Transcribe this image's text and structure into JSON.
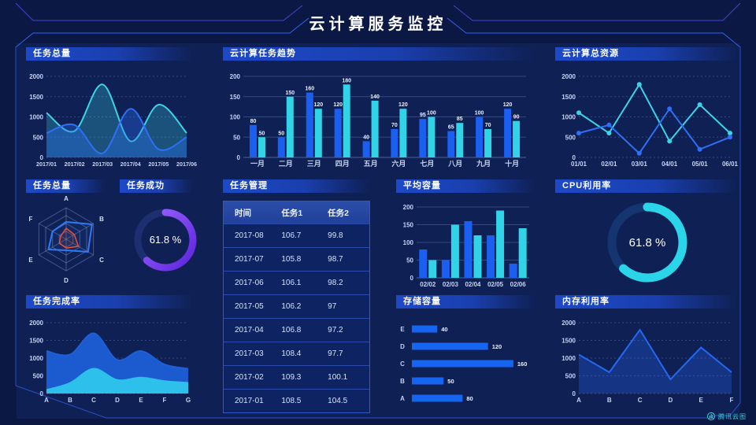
{
  "header": {
    "title": "云计算服务监控"
  },
  "watermark": {
    "label": "腾讯云图"
  },
  "panels": {
    "task_total_trend": {
      "title": "任务总量"
    },
    "cloud_task_trend": {
      "title": "云计算任务趋势"
    },
    "cloud_resources": {
      "title": "云计算总资源"
    },
    "task_total_radar": {
      "title": "任务总量"
    },
    "task_success": {
      "title": "任务成功"
    },
    "task_management": {
      "title": "任务管理"
    },
    "avg_capacity": {
      "title": "平均容量"
    },
    "cpu_usage": {
      "title": "CPU利用率"
    },
    "task_completion": {
      "title": "任务完成率"
    },
    "storage_capacity": {
      "title": "存储容量"
    },
    "memory_usage": {
      "title": "内存利用率"
    }
  },
  "gauges": {
    "task_success": {
      "value": 61.8,
      "label": "61.8 %",
      "color_start": "#9b63ff",
      "color_end": "#5b24dc",
      "track": "#1d2f6e"
    },
    "cpu_usage": {
      "value": 61.8,
      "label": "61.8 %",
      "color": "#2bd5e9",
      "track": "#14356f"
    }
  },
  "table": {
    "columns": [
      "时间",
      "任务1",
      "任务2"
    ],
    "rows": [
      [
        "2017-08",
        "106.7",
        "99.8"
      ],
      [
        "2017-07",
        "105.8",
        "98.7"
      ],
      [
        "2017-06",
        "106.1",
        "98.2"
      ],
      [
        "2017-05",
        "106.2",
        "97"
      ],
      [
        "2017-04",
        "106.8",
        "97.2"
      ],
      [
        "2017-03",
        "108.4",
        "97.7"
      ],
      [
        "2017-02",
        "109.3",
        "100.1"
      ],
      [
        "2017-01",
        "108.5",
        "104.5"
      ]
    ]
  },
  "chart_data": {
    "task_total_trend": {
      "type": "smooth-area",
      "categories": [
        "2017/01",
        "2017/02",
        "2017/03",
        "2017/04",
        "2017/05",
        "2017/06"
      ],
      "series": [
        {
          "name": "cyan",
          "color": "#3bd4e4",
          "fill_opacity": 0.28,
          "values": [
            1100,
            650,
            1800,
            400,
            1300,
            600
          ]
        },
        {
          "name": "blue",
          "color": "#2f6ff5",
          "fill_opacity": 0.35,
          "values": [
            600,
            800,
            100,
            1200,
            200,
            500
          ]
        }
      ],
      "yticks": [
        0,
        500,
        1000,
        1500,
        2000
      ],
      "ymax": 2000
    },
    "cloud_task_trend": {
      "type": "grouped-bar",
      "categories": [
        "一月",
        "二月",
        "三月",
        "四月",
        "五月",
        "六月",
        "七月",
        "八月",
        "九月",
        "十月"
      ],
      "series": [
        {
          "name": "blue",
          "color": "#1a5ff0",
          "values": [
            80,
            50,
            160,
            120,
            40,
            70,
            95,
            65,
            100,
            120
          ]
        },
        {
          "name": "cyan",
          "color": "#30d4e6",
          "values": [
            50,
            150,
            120,
            180,
            140,
            120,
            100,
            85,
            70,
            90
          ]
        }
      ],
      "yticks": [
        0,
        50,
        100,
        150,
        200
      ],
      "ymax": 200,
      "value_labels": true
    },
    "cloud_resources": {
      "type": "line-marker",
      "categories": [
        "01/01",
        "02/01",
        "03/01",
        "04/01",
        "05/01",
        "06/01"
      ],
      "series": [
        {
          "name": "cyan",
          "color": "#3bd4e4",
          "values": [
            1100,
            600,
            1800,
            400,
            1300,
            600
          ]
        },
        {
          "name": "blue",
          "color": "#2f6ff5",
          "values": [
            600,
            800,
            100,
            1200,
            200,
            500
          ]
        }
      ],
      "yticks": [
        0,
        500,
        1000,
        1500,
        2000
      ],
      "ymax": 2000
    },
    "task_total_radar": {
      "type": "radar",
      "axes": [
        "A",
        "B",
        "C",
        "D",
        "E",
        "F"
      ],
      "max": 100,
      "series": [
        {
          "name": "blue",
          "color": "#2e7bf5",
          "width": 2,
          "fill_opacity": 0.08,
          "values": [
            55,
            95,
            80,
            35,
            65,
            50
          ]
        },
        {
          "name": "red",
          "color": "#e8503a",
          "width": 1.5,
          "fill_opacity": 0.12,
          "values": [
            35,
            30,
            45,
            28,
            25,
            20
          ]
        }
      ]
    },
    "avg_capacity": {
      "type": "grouped-bar",
      "categories": [
        "02/02",
        "02/03",
        "02/04",
        "02/05",
        "02/06"
      ],
      "series": [
        {
          "name": "blue",
          "color": "#1a5ff0",
          "values": [
            80,
            50,
            160,
            120,
            40
          ]
        },
        {
          "name": "cyan",
          "color": "#30d4e6",
          "values": [
            50,
            150,
            120,
            190,
            140
          ]
        }
      ],
      "yticks": [
        0,
        50,
        100,
        150,
        200
      ],
      "ymax": 200,
      "value_labels": false
    },
    "task_completion": {
      "type": "smooth-area",
      "categories": [
        "A",
        "B",
        "C",
        "D",
        "E",
        "F",
        "G"
      ],
      "series": [
        {
          "name": "blue",
          "color": "#1d5fd6",
          "fill_opacity": 0.95,
          "values": [
            1200,
            1100,
            1700,
            950,
            1200,
            820,
            700
          ]
        },
        {
          "name": "cyan",
          "color": "#2cc0ea",
          "fill_opacity": 1,
          "values": [
            100,
            300,
            700,
            380,
            450,
            350,
            300
          ]
        }
      ],
      "yticks": [
        0,
        500,
        1000,
        1500,
        2000
      ],
      "ymax": 2000
    },
    "storage_capacity": {
      "type": "hbar",
      "categories": [
        "E",
        "D",
        "C",
        "B",
        "A"
      ],
      "values": [
        40,
        120,
        160,
        50,
        80
      ],
      "color": "#1565f0",
      "xmax": 180
    },
    "memory_usage": {
      "type": "line-area",
      "categories": [
        "A",
        "B",
        "C",
        "D",
        "E",
        "F"
      ],
      "series": [
        {
          "name": "blue",
          "color": "#2468f2",
          "fill_opacity": 0.3,
          "values": [
            1100,
            600,
            1800,
            400,
            1300,
            600
          ]
        }
      ],
      "yticks": [
        0,
        500,
        1000,
        1500,
        2000
      ],
      "ymax": 2000
    }
  }
}
